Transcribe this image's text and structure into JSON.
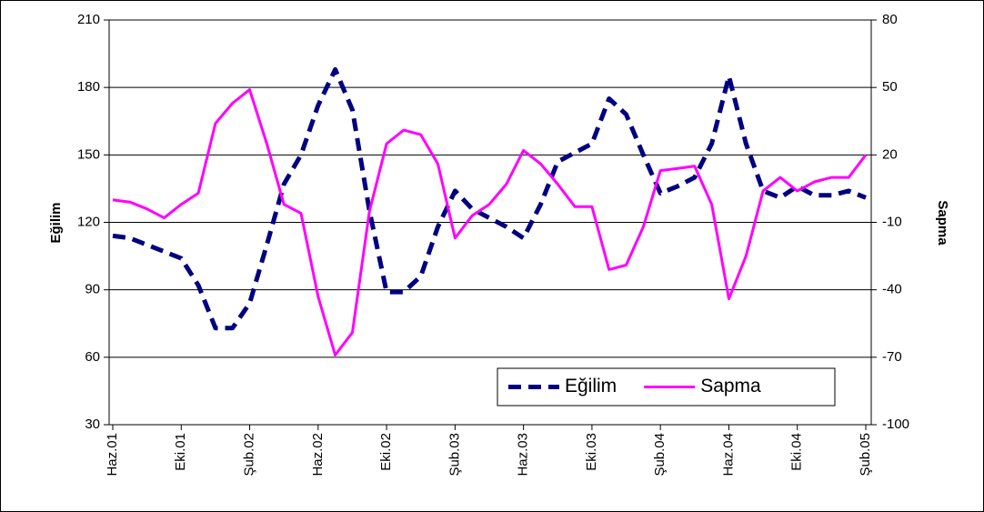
{
  "chart_data": {
    "type": "line",
    "categories": [
      "Haz.01",
      null,
      null,
      null,
      "Eki.01",
      null,
      null,
      null,
      "Şub.02",
      null,
      null,
      null,
      "Haz.02",
      null,
      null,
      null,
      "Eki.02",
      null,
      null,
      null,
      "Şub.03",
      null,
      null,
      null,
      "Haz.03",
      null,
      null,
      null,
      "Eki.03",
      null,
      null,
      null,
      "Şub.04",
      null,
      null,
      null,
      "Haz.04",
      null,
      null,
      null,
      "Eki.04",
      null,
      null,
      null,
      "Şub.05"
    ],
    "series": [
      {
        "name": "Eğilim",
        "color": "#000080",
        "dash": true,
        "values": [
          114,
          113,
          110,
          107,
          104,
          92,
          73,
          73,
          84,
          110,
          137,
          150,
          172,
          188,
          170,
          125,
          89,
          89,
          96,
          118,
          134,
          126,
          122,
          118,
          113,
          128,
          147,
          151,
          155,
          175,
          168,
          150,
          133,
          136,
          140,
          155,
          185,
          155,
          134,
          131,
          136,
          132,
          132,
          134,
          131
        ]
      },
      {
        "name": "Sapma",
        "color": "#ff00ff",
        "axis": "y2",
        "values": [
          0,
          -1,
          -4,
          -8,
          -2,
          3,
          34,
          43,
          49,
          25,
          -2,
          -6,
          -43,
          -69,
          -59,
          -5,
          25,
          31,
          29,
          16,
          -17,
          -7,
          -2,
          7,
          22,
          16,
          7,
          -3,
          -3,
          -31,
          -29,
          -12,
          13,
          14,
          15,
          -2,
          -44,
          -25,
          4,
          10,
          4,
          8,
          10,
          10,
          20
        ]
      }
    ],
    "ylabel": "Eğilim",
    "y2label": "Sapma",
    "ylim": [
      30,
      210
    ],
    "yticks": [
      30,
      60,
      90,
      120,
      150,
      180,
      210
    ],
    "y2lim": [
      -100,
      80
    ],
    "y2ticks": [
      -100,
      -70,
      -40,
      -10,
      20,
      50,
      80
    ],
    "grid": true,
    "legend": "lower right"
  }
}
